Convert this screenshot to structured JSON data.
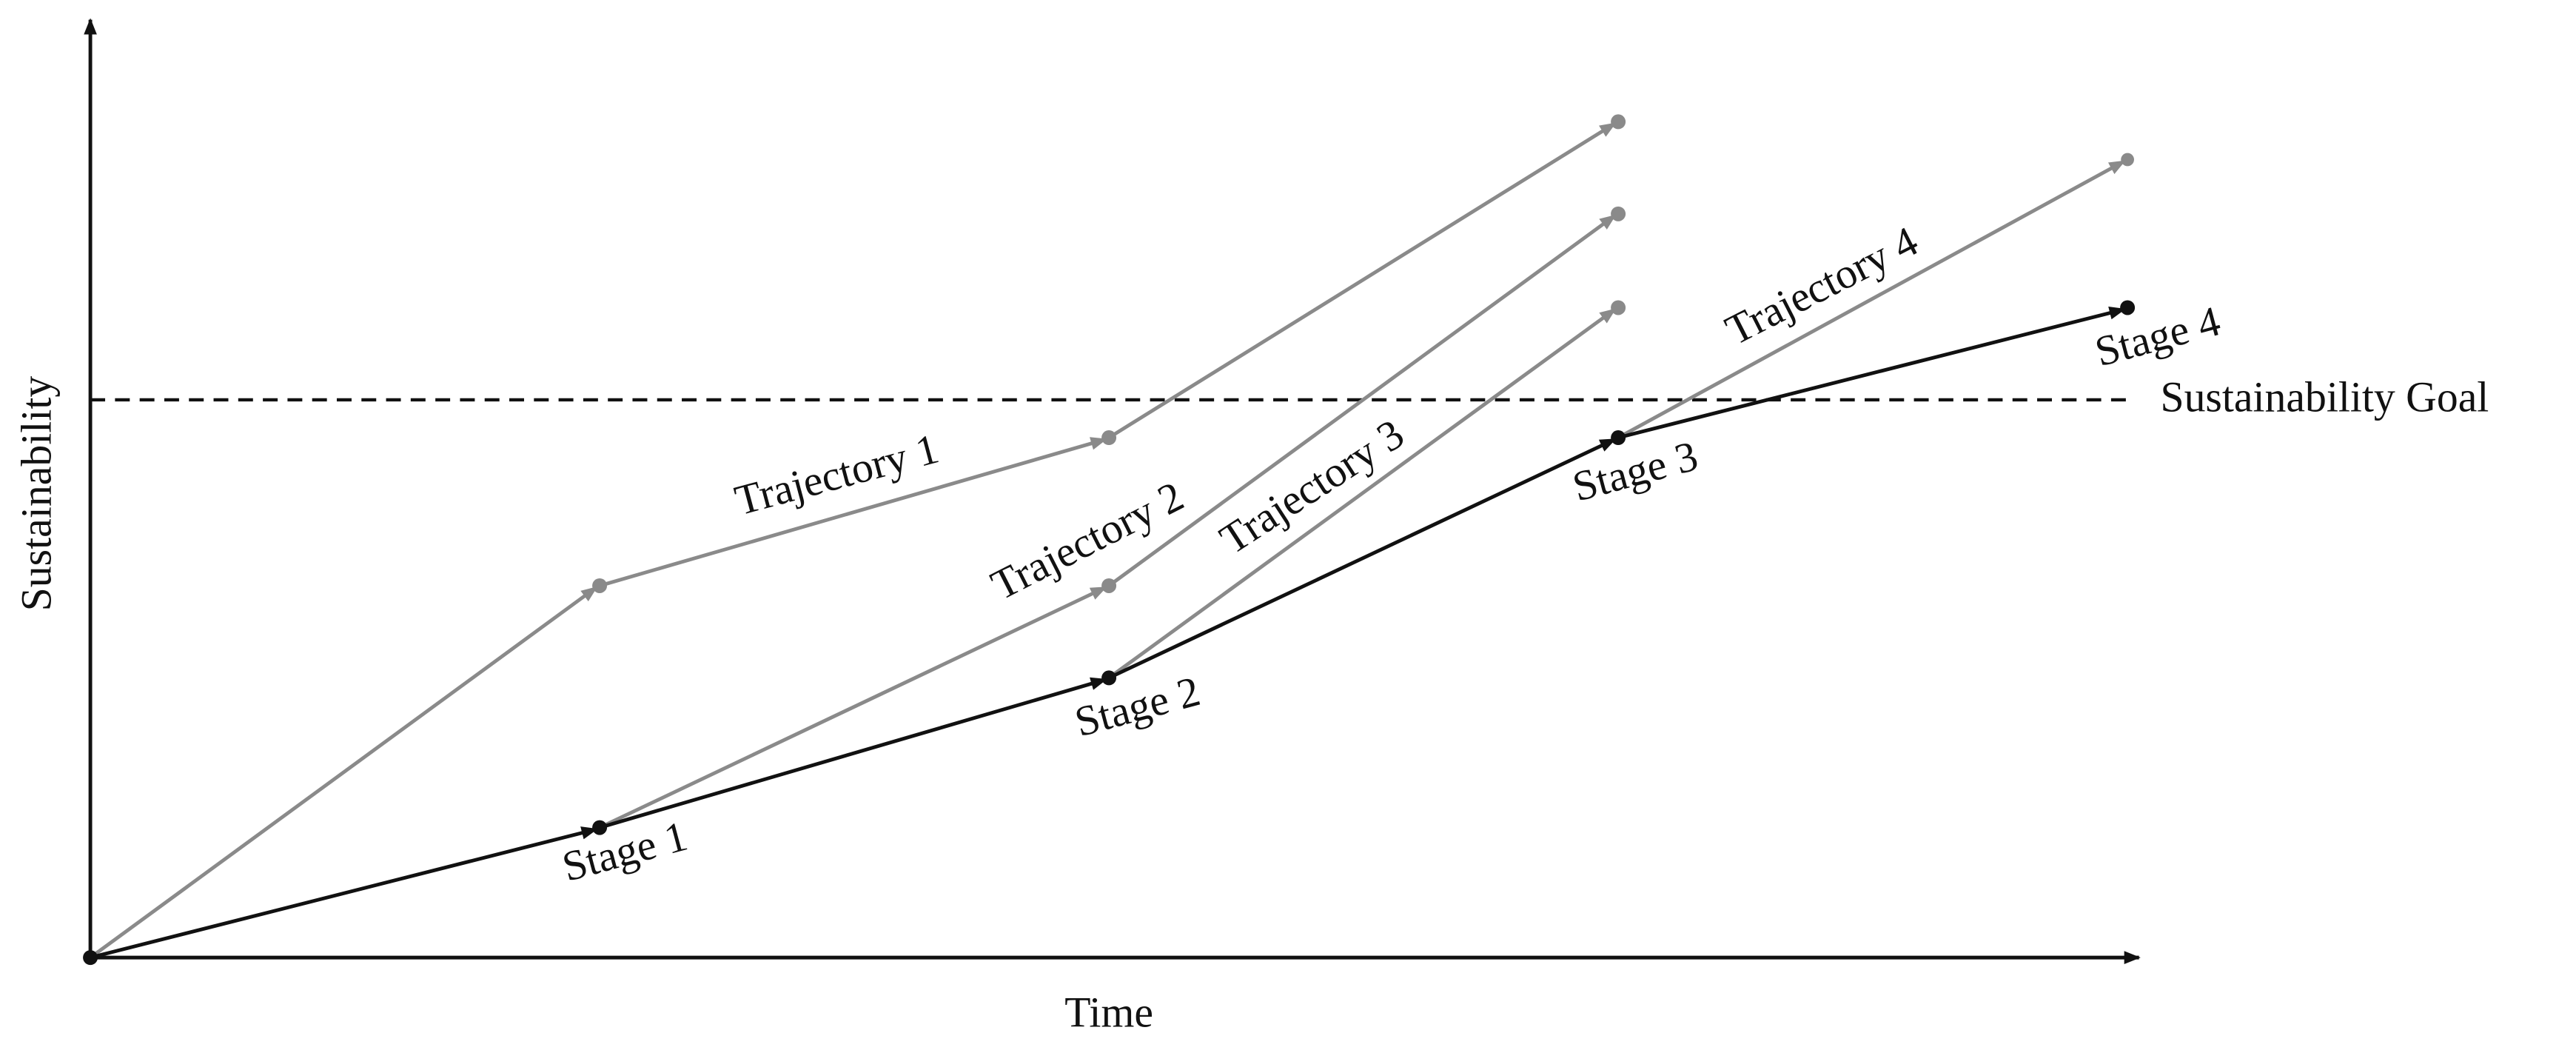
{
  "axes": {
    "x_label": "Time",
    "y_label": "Sustainability"
  },
  "goal": {
    "label": "Sustainability Goal"
  },
  "stages": [
    "Stage 1",
    "Stage 2",
    "Stage 3",
    "Stage 4"
  ],
  "trajectories": [
    "Trajectory 1",
    "Trajectory 2",
    "Trajectory 3",
    "Trajectory 4"
  ]
}
